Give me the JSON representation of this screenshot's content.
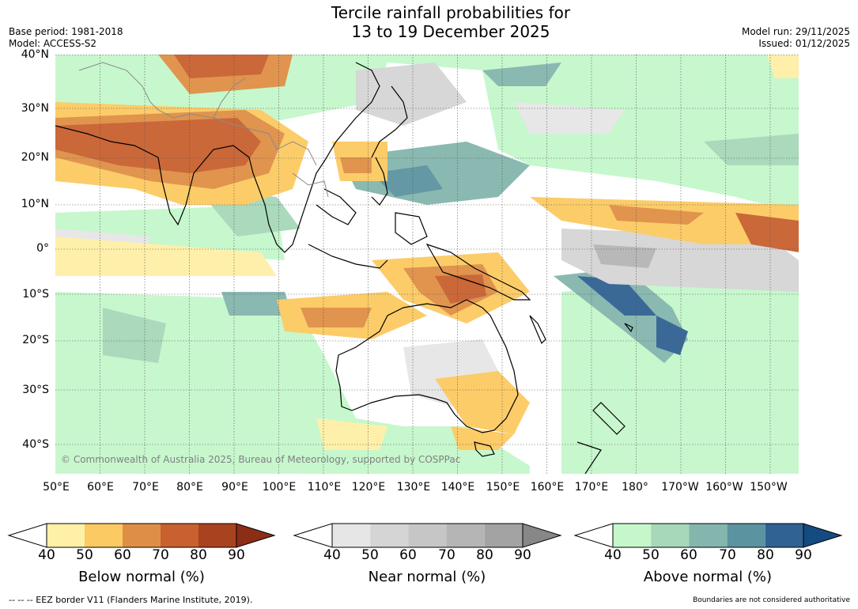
{
  "header": {
    "title_line1": "Tercile rainfall probabilities for",
    "title_line2": "13 to 19 December 2025",
    "base_period": "Base period: 1981-2018",
    "model": "Model: ACCESS-S2",
    "model_run": "Model run: 29/11/2025",
    "issued": "Issued: 01/12/2025"
  },
  "map": {
    "copyright": "© Commonwealth of Australia 2025, Bureau of Meteorology, supported by COSPPac",
    "lat_labels": [
      "40°N",
      "30°N",
      "20°N",
      "10°N",
      "0°",
      "10°S",
      "20°S",
      "30°S",
      "40°S"
    ],
    "lon_labels": [
      "50°E",
      "60°E",
      "70°E",
      "80°E",
      "90°E",
      "100°E",
      "110°E",
      "120°E",
      "130°E",
      "140°E",
      "150°E",
      "160°E",
      "170°E",
      "180°",
      "170°W",
      "160°W",
      "150°W"
    ]
  },
  "colorbars": [
    {
      "name": "below",
      "title": "Below normal (%)",
      "ticks": [
        "40",
        "50",
        "60",
        "70",
        "80",
        "90"
      ],
      "low_color": "#ffffff",
      "colors": [
        "#fef0a6",
        "#fcca62",
        "#df8f45",
        "#c8602f",
        "#a9421f"
      ],
      "high_color": "#8c2d15"
    },
    {
      "name": "near",
      "title": "Near normal (%)",
      "ticks": [
        "40",
        "50",
        "60",
        "70",
        "80",
        "90"
      ],
      "low_color": "#ffffff",
      "colors": [
        "#e6e6e6",
        "#d5d5d5",
        "#c6c6c6",
        "#b5b5b5",
        "#a3a3a3"
      ],
      "high_color": "#878787"
    },
    {
      "name": "above",
      "title": "Above normal (%)",
      "ticks": [
        "40",
        "50",
        "60",
        "70",
        "80",
        "90"
      ],
      "low_color": "#ffffff",
      "colors": [
        "#c5f7cb",
        "#a6d8b9",
        "#84b6ad",
        "#5c93a0",
        "#306293"
      ],
      "high_color": "#144b80"
    }
  ],
  "footer": {
    "eez_note": "--  --  -- EEZ border V11 (Flanders Marine Institute, 2019).",
    "disclaimer": "Boundaries are not considered authoritative"
  }
}
